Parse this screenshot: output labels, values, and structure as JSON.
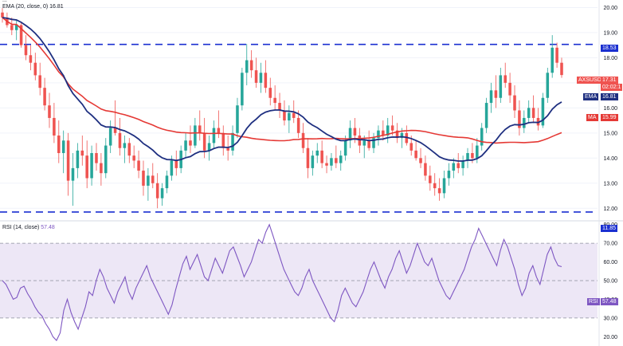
{
  "legend": {
    "price_text": "...",
    "ema_text": "EMA (20, close, 0)",
    "ema_value": "16.81",
    "rsi_text": "RSI (14, close)",
    "rsi_value": "57.48"
  },
  "labels": {
    "symbol": "AXSUSDT",
    "price": "17.31",
    "countdown": "02:02:1",
    "ema_name": "EMA",
    "ema_value": "16.81",
    "ma_name": "MA",
    "ma_value": "15.99",
    "rsi_name": "RSI",
    "rsi_value": "57.48",
    "resistance": "18.53",
    "support": "11.85"
  },
  "colors": {
    "up": "#26a69a",
    "down": "#ef5350",
    "ema": "#1e2f80",
    "ma": "#e53935",
    "level": "#1a2fd0",
    "rsi": "#7e57c2",
    "rsi_band": "#ede7f6"
  },
  "chart_data": [
    {
      "type": "candlestick",
      "symbol": "AXSUSDT",
      "y_ticks": [
        "12.00",
        "13.00",
        "14.00",
        "15.00",
        "16.00",
        "17.00",
        "18.00",
        "19.00",
        "20.00"
      ],
      "ylim": [
        11.5,
        20.3
      ],
      "horizontal_levels": [
        18.53,
        11.85
      ],
      "last_price": 17.31,
      "indicators": [
        {
          "name": "EMA",
          "value": 16.81
        },
        {
          "name": "MA",
          "value": 15.99
        }
      ],
      "candles_ohlc": [
        [
          19.8,
          19.98,
          19.4,
          19.6
        ],
        [
          19.6,
          19.8,
          19.2,
          19.3
        ],
        [
          19.3,
          19.6,
          18.9,
          19.1
        ],
        [
          19.1,
          19.5,
          18.7,
          19.3
        ],
        [
          19.3,
          19.4,
          18.4,
          18.5
        ],
        [
          18.5,
          18.9,
          17.9,
          18.1
        ],
        [
          18.1,
          18.5,
          17.5,
          17.8
        ],
        [
          17.8,
          18.2,
          17.1,
          17.3
        ],
        [
          17.3,
          17.8,
          16.5,
          16.8
        ],
        [
          16.8,
          17.2,
          15.9,
          16.1
        ],
        [
          16.1,
          16.6,
          15.2,
          15.6
        ],
        [
          15.6,
          16.2,
          14.6,
          14.9
        ],
        [
          14.9,
          15.5,
          13.8,
          14.2
        ],
        [
          14.2,
          15.1,
          13.4,
          14.7
        ],
        [
          14.7,
          15.0,
          12.5,
          13.1
        ],
        [
          13.1,
          14.2,
          12.1,
          13.6
        ],
        [
          13.6,
          14.6,
          13.2,
          14.3
        ],
        [
          14.3,
          14.9,
          13.7,
          14.1
        ],
        [
          14.1,
          14.7,
          12.8,
          13.2
        ],
        [
          13.2,
          14.5,
          12.9,
          14.2
        ],
        [
          14.2,
          14.6,
          13.5,
          13.8
        ],
        [
          13.8,
          14.2,
          12.9,
          13.4
        ],
        [
          13.4,
          14.8,
          13.2,
          14.5
        ],
        [
          14.5,
          15.5,
          14.2,
          15.2
        ],
        [
          15.2,
          16.3,
          14.9,
          15.0
        ],
        [
          15.0,
          15.6,
          14.1,
          14.4
        ],
        [
          14.4,
          14.9,
          13.8,
          14.6
        ],
        [
          14.6,
          14.8,
          13.8,
          14.1
        ],
        [
          14.1,
          14.5,
          13.6,
          13.9
        ],
        [
          13.9,
          14.3,
          13.2,
          13.5
        ],
        [
          13.5,
          13.9,
          12.5,
          12.9
        ],
        [
          12.9,
          13.6,
          12.3,
          13.3
        ],
        [
          13.3,
          13.8,
          12.8,
          13.0
        ],
        [
          13.0,
          13.4,
          12.0,
          12.4
        ],
        [
          12.4,
          13.0,
          12.1,
          12.8
        ],
        [
          12.8,
          13.5,
          12.6,
          13.3
        ],
        [
          13.3,
          14.1,
          13.1,
          13.9
        ],
        [
          13.9,
          14.3,
          13.3,
          13.6
        ],
        [
          13.6,
          14.5,
          13.4,
          14.3
        ],
        [
          14.3,
          15.0,
          14.0,
          14.7
        ],
        [
          14.7,
          15.3,
          14.2,
          14.5
        ],
        [
          14.5,
          15.6,
          14.4,
          15.3
        ],
        [
          15.3,
          15.9,
          14.7,
          15.0
        ],
        [
          15.0,
          15.6,
          14.0,
          14.3
        ],
        [
          14.3,
          14.9,
          13.9,
          14.6
        ],
        [
          14.6,
          15.5,
          14.4,
          15.2
        ],
        [
          15.2,
          15.9,
          14.8,
          15.0
        ],
        [
          15.0,
          15.3,
          14.1,
          14.4
        ],
        [
          14.4,
          14.9,
          13.9,
          14.3
        ],
        [
          14.3,
          15.3,
          14.1,
          15.0
        ],
        [
          15.0,
          16.4,
          14.8,
          16.1
        ],
        [
          16.1,
          17.6,
          15.9,
          17.4
        ],
        [
          17.4,
          18.55,
          16.9,
          17.9
        ],
        [
          17.9,
          18.3,
          17.2,
          17.5
        ],
        [
          17.5,
          18.0,
          16.8,
          17.0
        ],
        [
          17.0,
          17.8,
          16.6,
          17.4
        ],
        [
          17.4,
          17.9,
          16.6,
          16.8
        ],
        [
          16.8,
          17.2,
          16.1,
          16.4
        ],
        [
          16.4,
          16.9,
          15.9,
          16.2
        ],
        [
          16.2,
          16.6,
          15.6,
          15.9
        ],
        [
          15.9,
          16.3,
          15.3,
          15.5
        ],
        [
          15.5,
          16.1,
          15.0,
          15.8
        ],
        [
          15.8,
          16.3,
          15.4,
          15.6
        ],
        [
          15.6,
          15.9,
          14.8,
          15.0
        ],
        [
          15.0,
          15.4,
          14.2,
          14.4
        ],
        [
          14.4,
          14.8,
          13.2,
          13.6
        ],
        [
          13.6,
          14.3,
          13.3,
          14.1
        ],
        [
          14.1,
          14.6,
          13.8,
          14.3
        ],
        [
          14.3,
          14.7,
          13.6,
          13.8
        ],
        [
          13.8,
          14.1,
          13.4,
          13.7
        ],
        [
          13.7,
          14.2,
          13.5,
          14.0
        ],
        [
          14.0,
          14.5,
          13.6,
          13.8
        ],
        [
          13.8,
          14.3,
          13.5,
          14.1
        ],
        [
          14.1,
          14.9,
          13.9,
          14.7
        ],
        [
          14.7,
          15.5,
          14.4,
          15.2
        ],
        [
          15.2,
          15.6,
          14.6,
          14.9
        ],
        [
          14.9,
          15.2,
          14.2,
          14.5
        ],
        [
          14.5,
          14.9,
          14.0,
          14.7
        ],
        [
          14.7,
          15.1,
          14.3,
          14.4
        ],
        [
          14.4,
          15.0,
          14.2,
          14.8
        ],
        [
          14.8,
          15.3,
          14.5,
          15.1
        ],
        [
          15.1,
          15.5,
          14.7,
          14.9
        ],
        [
          14.9,
          15.6,
          14.6,
          15.3
        ],
        [
          15.3,
          15.7,
          14.9,
          15.1
        ],
        [
          15.1,
          15.4,
          14.6,
          14.8
        ],
        [
          14.8,
          15.2,
          14.4,
          15.0
        ],
        [
          15.0,
          15.3,
          14.5,
          14.6
        ],
        [
          14.6,
          14.9,
          14.1,
          14.3
        ],
        [
          14.3,
          14.7,
          13.9,
          14.0
        ],
        [
          14.0,
          14.4,
          13.6,
          13.8
        ],
        [
          13.8,
          14.1,
          13.1,
          13.3
        ],
        [
          13.3,
          13.7,
          12.7,
          13.0
        ],
        [
          13.0,
          13.4,
          12.5,
          12.8
        ],
        [
          12.8,
          13.2,
          12.3,
          12.6
        ],
        [
          12.6,
          13.5,
          12.4,
          13.2
        ],
        [
          13.2,
          13.8,
          12.9,
          13.5
        ],
        [
          13.5,
          14.0,
          13.2,
          13.8
        ],
        [
          13.8,
          14.2,
          13.4,
          13.6
        ],
        [
          13.6,
          14.1,
          13.3,
          13.9
        ],
        [
          13.9,
          14.4,
          13.6,
          14.2
        ],
        [
          14.2,
          14.6,
          13.8,
          14.0
        ],
        [
          14.0,
          14.8,
          13.8,
          14.5
        ],
        [
          14.5,
          15.4,
          14.3,
          15.2
        ],
        [
          15.2,
          16.4,
          15.0,
          16.2
        ],
        [
          16.2,
          17.0,
          15.8,
          16.7
        ],
        [
          16.7,
          17.3,
          16.0,
          16.4
        ],
        [
          16.4,
          17.6,
          16.2,
          17.3
        ],
        [
          17.3,
          17.8,
          16.8,
          17.0
        ],
        [
          17.0,
          17.4,
          16.2,
          16.5
        ],
        [
          16.5,
          16.9,
          15.6,
          15.9
        ],
        [
          15.9,
          16.3,
          14.9,
          15.2
        ],
        [
          15.2,
          15.9,
          15.0,
          15.6
        ],
        [
          15.6,
          16.3,
          15.4,
          16.0
        ],
        [
          16.0,
          16.5,
          15.4,
          15.6
        ],
        [
          15.6,
          16.0,
          15.1,
          15.3
        ],
        [
          15.3,
          16.6,
          15.2,
          16.4
        ],
        [
          16.4,
          17.6,
          16.2,
          17.4
        ],
        [
          17.4,
          18.9,
          17.2,
          18.4
        ],
        [
          18.4,
          18.6,
          17.6,
          17.8
        ],
        [
          17.8,
          18.0,
          17.2,
          17.31
        ]
      ]
    },
    {
      "type": "line",
      "name": "RSI",
      "y_ticks": [
        "20.00",
        "30.00",
        "40.00",
        "50.00",
        "60.00",
        "70.00",
        "80.00"
      ],
      "ylim": [
        15,
        82
      ],
      "bands": [
        30,
        50,
        70
      ],
      "last_value": 57.48,
      "values": [
        50,
        48,
        44,
        40,
        41,
        46,
        47,
        43,
        40,
        36,
        33,
        31,
        27,
        24,
        20,
        18,
        22,
        34,
        40,
        33,
        28,
        24,
        30,
        36,
        44,
        42,
        50,
        56,
        52,
        46,
        42,
        38,
        44,
        48,
        52,
        44,
        40,
        46,
        50,
        54,
        58,
        52,
        48,
        44,
        40,
        36,
        32,
        37,
        45,
        52,
        59,
        63,
        56,
        60,
        64,
        58,
        52,
        50,
        56,
        62,
        58,
        54,
        60,
        66,
        68,
        63,
        58,
        52,
        56,
        60,
        66,
        72,
        70,
        76,
        80,
        74,
        68,
        62,
        56,
        52,
        48,
        44,
        42,
        46,
        52,
        56,
        50,
        46,
        42,
        38,
        34,
        30,
        28,
        34,
        42,
        46,
        42,
        38,
        36,
        40,
        44,
        50,
        56,
        60,
        55,
        50,
        46,
        52,
        56,
        62,
        66,
        60,
        54,
        58,
        64,
        70,
        65,
        60,
        58,
        62,
        56,
        50,
        46,
        42,
        40,
        44,
        48,
        52,
        56,
        62,
        68,
        72,
        78,
        74,
        70,
        66,
        62,
        58,
        66,
        72,
        68,
        62,
        56,
        48,
        42,
        46,
        54,
        58,
        52,
        48,
        56,
        64,
        68,
        62,
        58,
        57.48
      ]
    }
  ]
}
